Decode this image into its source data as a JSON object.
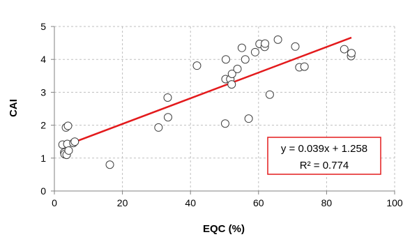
{
  "chart_data": {
    "type": "scatter",
    "xlabel": "EQC (%)",
    "ylabel": "CAI",
    "xlim": [
      0,
      100
    ],
    "ylim": [
      0,
      5
    ],
    "xticks": [
      "0",
      "20",
      "40",
      "60",
      "80",
      "100"
    ],
    "yticks": [
      "0",
      "1",
      "2",
      "3",
      "4",
      "5"
    ],
    "grid": true,
    "series": [
      {
        "marker": "open-circle",
        "points": [
          [
            2.4,
            1.41
          ],
          [
            2.9,
            1.17
          ],
          [
            3.0,
            1.12
          ],
          [
            3.4,
            1.93
          ],
          [
            3.6,
            1.1
          ],
          [
            3.8,
            1.43
          ],
          [
            4.0,
            1.98
          ],
          [
            4.2,
            1.23
          ],
          [
            5.6,
            1.46
          ],
          [
            6.0,
            1.5
          ],
          [
            16.3,
            0.8
          ],
          [
            30.6,
            1.93
          ],
          [
            33.3,
            2.84
          ],
          [
            33.4,
            2.24
          ],
          [
            41.9,
            3.81
          ],
          [
            50.2,
            2.05
          ],
          [
            50.3,
            3.4
          ],
          [
            50.4,
            4.0
          ],
          [
            51.7,
            3.4
          ],
          [
            52.1,
            3.24
          ],
          [
            52.2,
            3.56
          ],
          [
            53.8,
            3.71
          ],
          [
            55.1,
            4.35
          ],
          [
            56.1,
            4.0
          ],
          [
            57.1,
            2.2
          ],
          [
            59.0,
            4.22
          ],
          [
            60.3,
            4.47
          ],
          [
            61.8,
            4.38
          ],
          [
            61.9,
            4.48
          ],
          [
            63.3,
            2.93
          ],
          [
            65.7,
            4.6
          ],
          [
            70.8,
            4.39
          ],
          [
            72.0,
            3.76
          ],
          [
            73.5,
            3.78
          ],
          [
            85.2,
            4.31
          ],
          [
            87.2,
            4.1
          ],
          [
            87.3,
            4.19
          ]
        ]
      }
    ],
    "trendline": {
      "slope": 0.039,
      "intercept": 1.258,
      "x_range": [
        2.4,
        87.3
      ],
      "color": "#e31a1c"
    },
    "annotation": {
      "equation": "y = 0.039x + 1.258",
      "r_squared": "R² = 0.774",
      "border_color": "#e31a1c"
    }
  }
}
